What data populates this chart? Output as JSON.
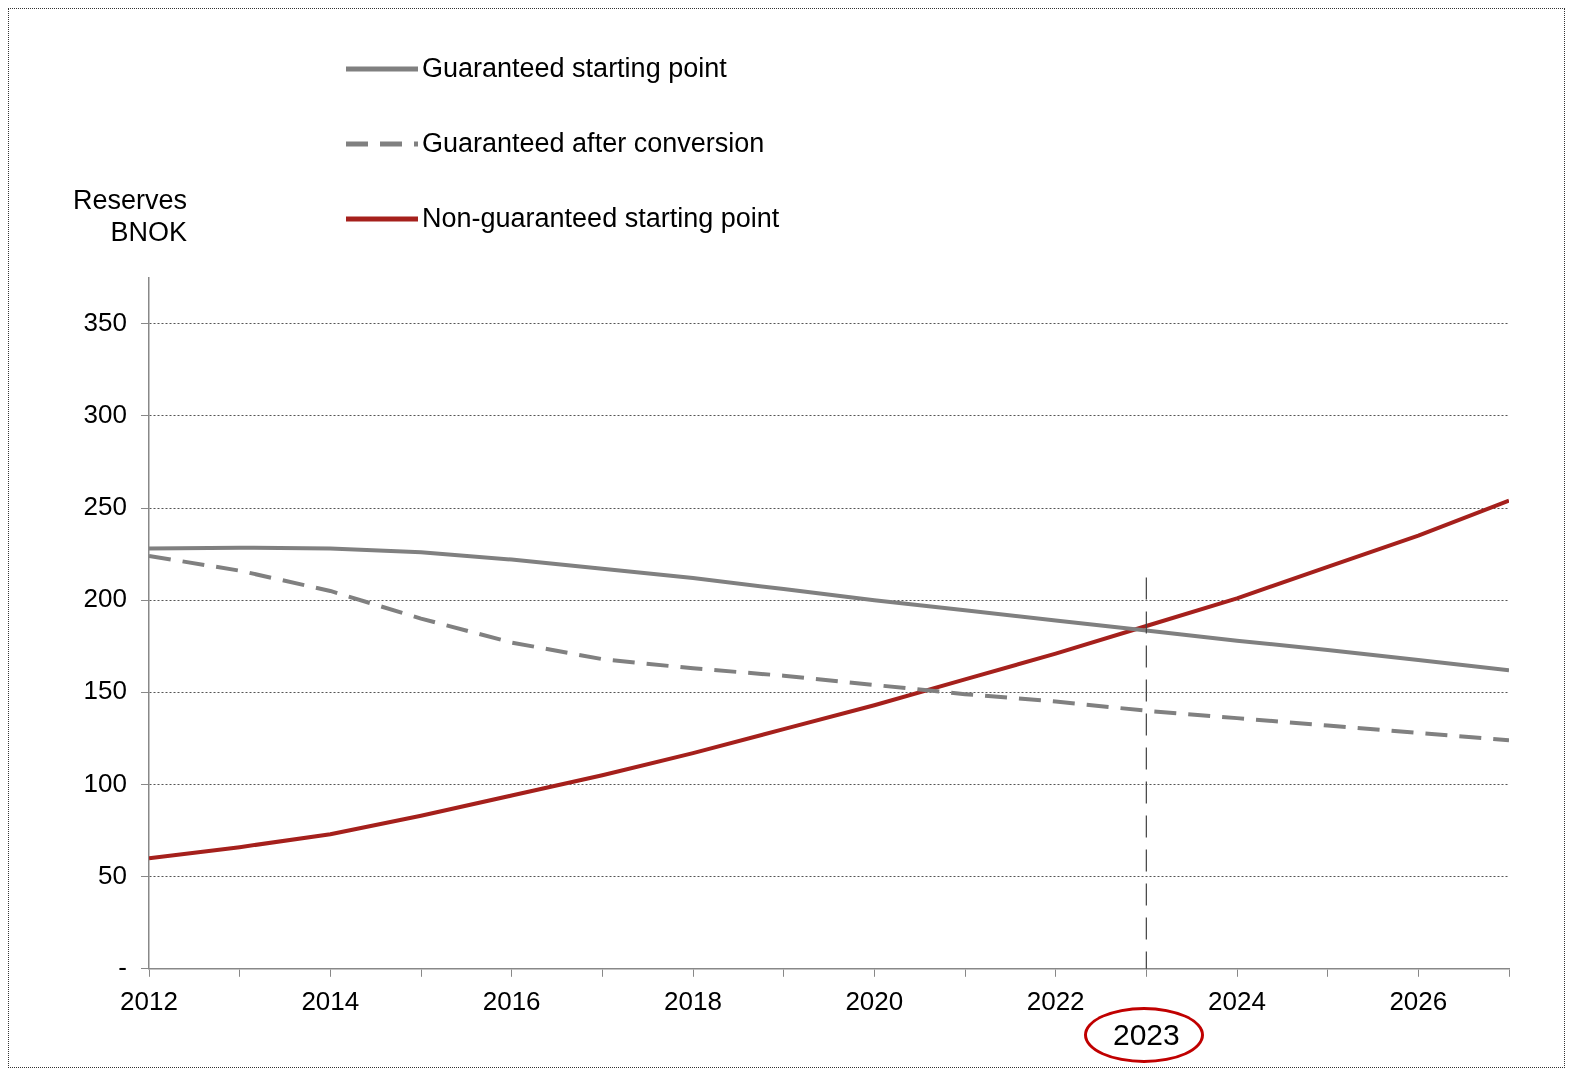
{
  "chart_data": {
    "type": "line",
    "ylabel": "Reserves BNOK",
    "x": [
      2012,
      2013,
      2014,
      2015,
      2016,
      2017,
      2018,
      2019,
      2020,
      2021,
      2022,
      2023,
      2024,
      2025,
      2026,
      2027
    ],
    "series": [
      {
        "name": "Guaranteed starting point",
        "color": "#808080",
        "line_style": "solid",
        "values": [
          228,
          228.5,
          228,
          226,
          222,
          217,
          212,
          206,
          200,
          194.5,
          189,
          183.5,
          178,
          173,
          167.5,
          162
        ]
      },
      {
        "name": "Guaranteed after conversion",
        "color": "#808080",
        "line_style": "dashed",
        "values": [
          224,
          216,
          205,
          190,
          177,
          168,
          163,
          159,
          154,
          149,
          145,
          140,
          136,
          132,
          128,
          124
        ]
      },
      {
        "name": "Non-guaranteed starting point",
        "color": "#a5201c",
        "line_style": "solid",
        "values": [
          60,
          66,
          73,
          83,
          94,
          105,
          117,
          130,
          143,
          157,
          171,
          186,
          201,
          218,
          235,
          254
        ]
      }
    ],
    "xlim": [
      2012,
      2027
    ],
    "xticks": [
      2012,
      {
        "value": 2013,
        "label": null
      },
      2014,
      {
        "value": 2015,
        "label": null
      },
      2016,
      {
        "value": 2017,
        "label": null
      },
      2018,
      {
        "value": 2019,
        "label": null
      },
      2020,
      {
        "value": 2021,
        "label": null
      },
      2022,
      {
        "value": 2023,
        "label": null
      },
      2024,
      {
        "value": 2025,
        "label": null
      },
      2026,
      {
        "value": 2027,
        "label": null
      }
    ],
    "ylim": [
      0,
      375
    ],
    "yticks": [
      {
        "value": 0,
        "label": "-"
      },
      50,
      100,
      150,
      200,
      250,
      300,
      350
    ],
    "ref_lines": [
      {
        "axis": "x",
        "value": 2023,
        "label": "2023",
        "color": "#404040",
        "line_style": "dashed"
      }
    ],
    "grid": "y",
    "legend": "top",
    "marker": "none"
  }
}
